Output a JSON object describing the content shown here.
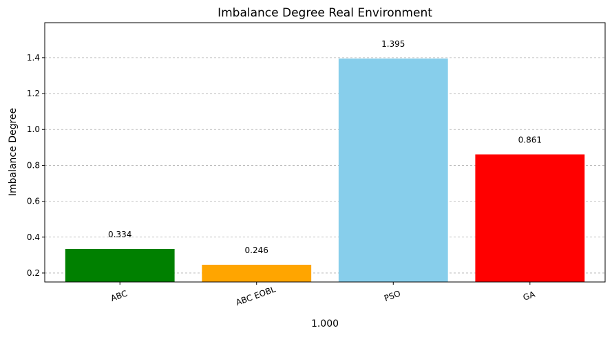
{
  "chart_data": {
    "type": "bar",
    "title": "Imbalance Degree Real Environment",
    "xlabel": "1.000",
    "ylabel": "Imbalance Degree",
    "categories": [
      "ABC",
      "ABC EOBL",
      "PSO",
      "GA"
    ],
    "values": [
      0.334,
      0.246,
      1.395,
      0.861
    ],
    "value_labels": [
      "0.334",
      "0.246",
      "1.395",
      "0.861"
    ],
    "colors": [
      "#008000",
      "#ffa500",
      "#87ceeb",
      "#ff0000"
    ],
    "ylim": [
      0.15,
      1.595
    ],
    "yticks": [
      0.2,
      0.4,
      0.6,
      0.8,
      1.0,
      1.2,
      1.4
    ],
    "ytick_labels": [
      "0.2",
      "0.4",
      "0.6",
      "0.8",
      "1.0",
      "1.2",
      "1.4"
    ],
    "grid": "y-dashed",
    "xtick_rotation_deg": -20
  }
}
